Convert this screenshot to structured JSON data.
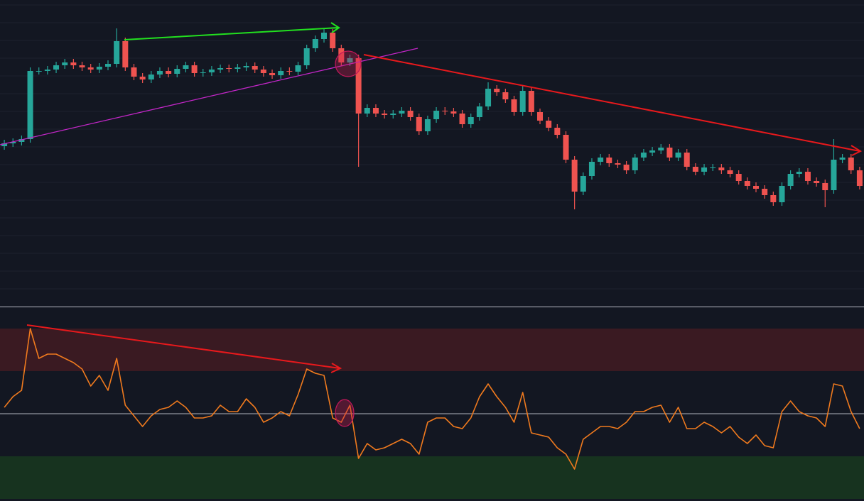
{
  "chart_data": [
    {
      "type": "candlestick",
      "up_color": "#26a69a",
      "down_color": "#ef5350",
      "ylim": [
        0,
        432
      ],
      "yticks": [
        0,
        25,
        50,
        75,
        100,
        125,
        150,
        175,
        200,
        225,
        250,
        275,
        300,
        325,
        350,
        375,
        400,
        425
      ],
      "grid": true,
      "open": [
        226,
        230,
        232,
        236,
        332,
        332,
        334,
        340,
        344,
        340,
        337,
        334,
        338,
        342,
        374,
        337,
        324,
        320,
        327,
        332,
        328,
        335,
        340,
        329,
        330,
        334,
        336,
        335,
        337,
        339,
        334,
        329,
        326,
        332,
        331,
        340,
        364,
        377,
        386,
        364,
        344,
        350,
        272,
        280,
        272,
        270,
        272,
        276,
        267,
        247,
        264,
        276,
        275,
        272,
        257,
        267,
        282,
        307,
        302,
        292,
        274,
        304,
        274,
        262,
        252,
        242,
        207,
        162,
        184,
        204,
        210,
        202,
        200,
        192,
        210,
        217,
        220,
        224,
        210,
        217,
        197,
        190,
        196,
        196,
        192,
        187,
        177,
        170,
        166,
        157,
        147,
        170,
        187,
        190,
        177,
        174,
        164,
        207,
        210,
        192
      ],
      "high": [
        235,
        237,
        241,
        337,
        337,
        339,
        345,
        349,
        349,
        345,
        342,
        343,
        347,
        392,
        379,
        342,
        329,
        332,
        337,
        337,
        340,
        345,
        345,
        335,
        339,
        341,
        341,
        342,
        344,
        344,
        339,
        334,
        337,
        337,
        345,
        369,
        382,
        392,
        391,
        369,
        355,
        355,
        285,
        285,
        277,
        277,
        281,
        281,
        272,
        269,
        281,
        281,
        280,
        277,
        272,
        287,
        316,
        312,
        307,
        297,
        312,
        309,
        279,
        267,
        257,
        247,
        212,
        189,
        209,
        215,
        215,
        207,
        205,
        215,
        222,
        225,
        229,
        229,
        222,
        222,
        202,
        201,
        201,
        201,
        197,
        192,
        182,
        175,
        171,
        162,
        175,
        192,
        195,
        195,
        182,
        179,
        236,
        215,
        215,
        197
      ],
      "low": [
        221,
        225,
        227,
        231,
        327,
        327,
        329,
        335,
        335,
        332,
        329,
        329,
        333,
        337,
        332,
        319,
        315,
        315,
        322,
        323,
        323,
        330,
        324,
        324,
        325,
        329,
        330,
        330,
        332,
        329,
        324,
        321,
        321,
        326,
        326,
        335,
        359,
        372,
        359,
        339,
        339,
        197,
        267,
        267,
        265,
        265,
        267,
        262,
        242,
        242,
        259,
        270,
        267,
        252,
        252,
        262,
        277,
        297,
        287,
        269,
        269,
        269,
        257,
        247,
        237,
        202,
        137,
        157,
        179,
        199,
        197,
        195,
        187,
        187,
        205,
        212,
        215,
        205,
        205,
        192,
        185,
        185,
        191,
        187,
        182,
        172,
        165,
        161,
        152,
        142,
        142,
        165,
        182,
        172,
        169,
        140,
        159,
        202,
        187,
        165
      ],
      "close": [
        230,
        232,
        236,
        332,
        332,
        334,
        340,
        344,
        340,
        337,
        334,
        338,
        342,
        374,
        337,
        324,
        320,
        327,
        332,
        328,
        335,
        340,
        329,
        330,
        334,
        336,
        335,
        337,
        339,
        334,
        329,
        326,
        332,
        331,
        340,
        364,
        377,
        386,
        364,
        344,
        350,
        272,
        280,
        272,
        270,
        272,
        276,
        267,
        247,
        264,
        276,
        275,
        272,
        257,
        267,
        282,
        307,
        302,
        292,
        274,
        304,
        274,
        262,
        252,
        242,
        207,
        162,
        184,
        204,
        210,
        202,
        200,
        192,
        210,
        217,
        220,
        224,
        210,
        217,
        197,
        190,
        196,
        196,
        192,
        187,
        177,
        170,
        166,
        157,
        147,
        170,
        187,
        190,
        177,
        174,
        164,
        207,
        210,
        192,
        170
      ]
    },
    {
      "type": "line",
      "ylim": [
        9,
        100
      ],
      "yticks": [
        50
      ],
      "bands": [
        {
          "range": [
            70,
            90
          ],
          "color": "#3a1a22"
        },
        {
          "range": [
            10,
            30
          ],
          "color": "#17331f"
        }
      ],
      "series": [
        {
          "color": "#f07a1e",
          "values": [
            53,
            58,
            61,
            90,
            76,
            78,
            78,
            76,
            74,
            71,
            63,
            68,
            61,
            76,
            54,
            49,
            44,
            49,
            52,
            53,
            56,
            53,
            48,
            48,
            49,
            54,
            51,
            51,
            57,
            53,
            46,
            48,
            51,
            49,
            59,
            71,
            69,
            68,
            48,
            46,
            54,
            29,
            36,
            33,
            34,
            36,
            38,
            36,
            31,
            46,
            48,
            48,
            44,
            43,
            48,
            58,
            64,
            58,
            53,
            46,
            60,
            41,
            40,
            39,
            34,
            31,
            24,
            38,
            41,
            44,
            44,
            43,
            46,
            51,
            51,
            53,
            54,
            46,
            53,
            43,
            43,
            46,
            44,
            41,
            44,
            39,
            36,
            40,
            35,
            34,
            51,
            56,
            51,
            49,
            48,
            44,
            64,
            63,
            51,
            43
          ]
        }
      ]
    }
  ]
}
